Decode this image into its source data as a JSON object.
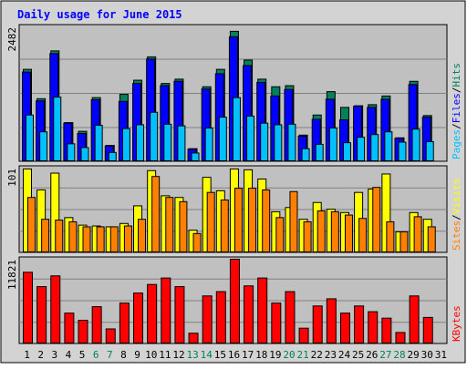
{
  "chart_data": {
    "type": "bar",
    "title": "Daily usage for June 2015",
    "categories": [
      "1",
      "2",
      "3",
      "4",
      "5",
      "6",
      "7",
      "8",
      "9",
      "10",
      "11",
      "12",
      "13",
      "14",
      "15",
      "16",
      "17",
      "18",
      "19",
      "20",
      "21",
      "22",
      "23",
      "24",
      "25",
      "26",
      "27",
      "28",
      "29",
      "30",
      "31"
    ],
    "weekend_days": [
      "6",
      "7",
      "13",
      "14",
      "20",
      "21",
      "27",
      "28"
    ],
    "colors": {
      "hits": "#00805c",
      "files": "#0000ff",
      "pages": "#00c0ff",
      "visits": "#ffff00",
      "sites": "#ff8000",
      "kbytes": "#ff0000",
      "title": "#0000ff",
      "weekday_label": "#000000",
      "weekend_label": "#00805c",
      "plot_background": "#c0c0c0",
      "frame_background": "#d3d3d3"
    },
    "panels": [
      {
        "id": "hits-files-pages",
        "ymax_label": "2482",
        "ylim": [
          0,
          2482
        ],
        "legend": [
          {
            "text": "Pages",
            "color": "#00c0ff"
          },
          {
            "text": "Files",
            "color": "#0000ff"
          },
          {
            "text": "Hits",
            "color": "#00805c"
          }
        ],
        "separators": [
          "/",
          "/"
        ],
        "series": [
          {
            "name": "Hits",
            "values": [
              1700,
              1160,
              2040,
              720,
              560,
              1180,
              300,
              1240,
              1500,
              1930,
              1440,
              1520,
              240,
              1380,
              1700,
              2400,
              1870,
              1520,
              1380,
              1400,
              490,
              860,
              1290,
              1000,
              1030,
              1050,
              1210,
              440,
              1480,
              850,
              0
            ]
          },
          {
            "name": "Files",
            "values": [
              1650,
              1120,
              1990,
              710,
              520,
              1140,
              290,
              1110,
              1440,
              1890,
              1400,
              1480,
              230,
              1340,
              1620,
              2300,
              1770,
              1460,
              1210,
              1330,
              470,
              780,
              1150,
              770,
              1020,
              1000,
              1150,
              430,
              1420,
              820,
              0
            ]
          },
          {
            "name": "Pages",
            "values": [
              860,
              550,
              1190,
              330,
              260,
              670,
              170,
              610,
              680,
              910,
              690,
              660,
              160,
              620,
              820,
              1180,
              840,
              710,
              680,
              690,
              240,
              320,
              620,
              350,
              450,
              500,
              550,
              360,
              600,
              370,
              0
            ]
          }
        ]
      },
      {
        "id": "visits-sites",
        "ymax_label": "101",
        "ylim": [
          0,
          101
        ],
        "legend": [
          {
            "text": "Sites",
            "color": "#ff8000"
          },
          {
            "text": "Visits",
            "color": "#ffff00"
          }
        ],
        "separators": [
          "/"
        ],
        "series": [
          {
            "name": "Visits",
            "values": [
              100,
              75,
              95,
              42,
              33,
              32,
              31,
              35,
              56,
              98,
              68,
              66,
              27,
              90,
              74,
              100,
              99,
              88,
              49,
              54,
              40,
              60,
              52,
              48,
              72,
              76,
              94,
              25,
              48,
              40,
              0
            ]
          },
          {
            "name": "Sites",
            "values": [
              66,
              40,
              39,
              37,
              31,
              31,
              31,
              32,
              40,
              91,
              66,
              61,
              23,
              72,
              63,
              77,
              77,
              75,
              42,
              73,
              37,
              50,
              49,
              45,
              41,
              78,
              37,
              25,
              43,
              31,
              0
            ]
          }
        ]
      },
      {
        "id": "kbytes",
        "ymax_label": "11821",
        "ylim": [
          0,
          11821
        ],
        "legend": [
          {
            "text": "KBytes",
            "color": "#ff0000"
          }
        ],
        "separators": [],
        "series": [
          {
            "name": "KBytes",
            "values": [
              10000,
              8000,
              9500,
              4300,
              3300,
              5200,
              2100,
              5700,
              7100,
              8300,
              9200,
              8000,
              1500,
              6700,
              7300,
              11821,
              8100,
              9200,
              5700,
              7300,
              2200,
              5300,
              6300,
              4300,
              5300,
              4500,
              3600,
              1600,
              6700,
              3700,
              0
            ]
          }
        ]
      }
    ]
  }
}
